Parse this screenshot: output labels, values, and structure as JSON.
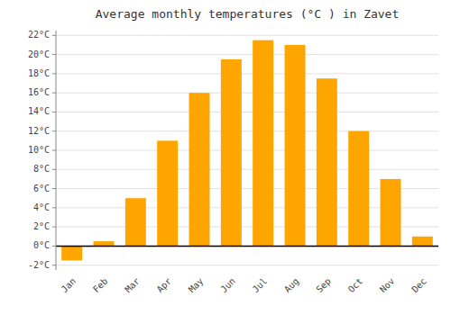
{
  "chart_data": {
    "type": "bar",
    "title": "Average monthly temperatures (°C ) in Zavet",
    "categories": [
      "Jan",
      "Feb",
      "Mar",
      "Apr",
      "May",
      "Jun",
      "Jul",
      "Aug",
      "Sep",
      "Oct",
      "Nov",
      "Dec"
    ],
    "values": [
      -1.5,
      0.5,
      5.0,
      11.0,
      16.0,
      19.5,
      21.5,
      21.0,
      17.5,
      12.0,
      7.0,
      1.0
    ],
    "color": "#FFA500",
    "ylim": [
      -2.5,
      22.5
    ],
    "yticks": [
      {
        "value": -2,
        "label": "-2°C"
      },
      {
        "value": 0,
        "label": "0°C"
      },
      {
        "value": 2,
        "label": "2°C"
      },
      {
        "value": 4,
        "label": "4°C"
      },
      {
        "value": 6,
        "label": "6°C"
      },
      {
        "value": 8,
        "label": "8°C"
      },
      {
        "value": 10,
        "label": "10°C"
      },
      {
        "value": 12,
        "label": "12°C"
      },
      {
        "value": 14,
        "label": "14°C"
      },
      {
        "value": 16,
        "label": "16°C"
      },
      {
        "value": 18,
        "label": "18°C"
      },
      {
        "value": 20,
        "label": "20°C"
      },
      {
        "value": 22,
        "label": "22°C"
      }
    ],
    "grid": true
  }
}
